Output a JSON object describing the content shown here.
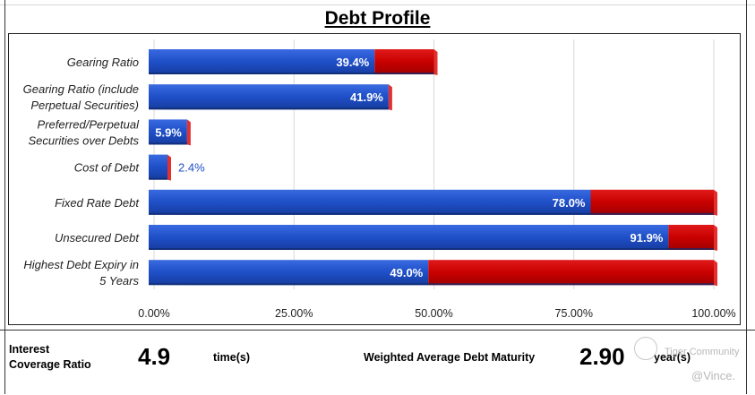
{
  "title": "Debt Profile",
  "chart_data": {
    "type": "bar",
    "orientation": "horizontal",
    "stacked_to_100": true,
    "categories": [
      "Gearing Ratio",
      "Gearing Ratio (include Perpetual Securities)",
      "Preferred/Perpetual Securities over Debts",
      "Cost of Debt",
      "Fixed Rate Debt",
      "Unsecured Debt",
      "Highest Debt Expiry in 5 Years"
    ],
    "category_lines": [
      [
        "Gearing Ratio"
      ],
      [
        "Gearing Ratio (include",
        "Perpetual Securities)"
      ],
      [
        "Preferred/Perpetual",
        "Securities over Debts"
      ],
      [
        "Cost of Debt"
      ],
      [
        "Fixed Rate Debt"
      ],
      [
        "Unsecured Debt"
      ],
      [
        "Highest Debt Expiry in",
        "5 Years"
      ]
    ],
    "values": [
      39.4,
      41.9,
      5.9,
      2.4,
      78.0,
      91.9,
      49.0
    ],
    "remainder_totals": [
      50,
      null,
      null,
      null,
      100,
      100,
      100
    ],
    "data_labels": [
      "39.4%",
      "41.9%",
      "5.9%",
      "2.4%",
      "78.0%",
      "91.9%",
      "49.0%"
    ],
    "x_ticks": [
      0,
      25,
      50,
      75,
      100
    ],
    "x_tick_labels": [
      "0.00%",
      "25.00%",
      "50.00%",
      "75.00%",
      "100.00%"
    ],
    "xlim": [
      0,
      100
    ],
    "grid": true,
    "colors": {
      "value": "#1f4fc8",
      "remainder": "#c80000",
      "label_outside": "#1f4fc8"
    }
  },
  "summary": {
    "icr_label_line1": "Interest",
    "icr_label_line2": "Coverage Ratio",
    "icr_value": "4.9",
    "icr_unit": "time(s)",
    "wadm_label": "Weighted Average Debt Maturity",
    "wadm_value": "2.90",
    "wadm_unit": "year(s)"
  },
  "watermark": {
    "line1": "Tiger Community",
    "line2": "@Vince."
  }
}
